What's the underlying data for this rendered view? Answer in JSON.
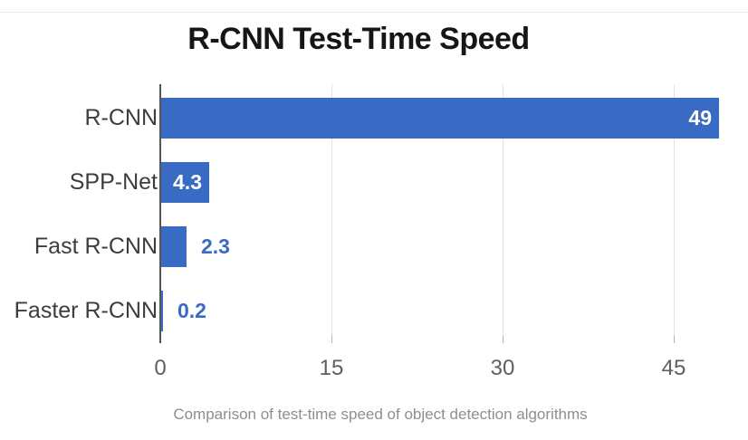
{
  "title_block": {
    "title": "R-CNN Test-Time Speed"
  },
  "chart_data": {
    "type": "bar",
    "orientation": "horizontal",
    "title": "R-CNN Test-Time Speed",
    "categories": [
      "R-CNN",
      "SPP-Net",
      "Fast R-CNN",
      "Faster R-CNN"
    ],
    "values": [
      49,
      4.3,
      2.3,
      0.2
    ],
    "value_labels": [
      "49",
      "4.3",
      "2.3",
      "0.2"
    ],
    "value_label_placement": [
      "inside",
      "inside",
      "outside",
      "outside"
    ],
    "x_ticks": [
      "0",
      "15",
      "30",
      "45"
    ],
    "x_tick_values": [
      0,
      15,
      30,
      45
    ],
    "xlim": [
      0,
      50
    ],
    "grid": true,
    "legend": "none",
    "colors": {
      "bar": "#3a6bc4",
      "value_label_inside": "#ffffff",
      "value_label_outside": "#3a6bc4",
      "axis_line": "#555555",
      "gridline": "#e2e2e2",
      "tick_mark": "#b4b4b4",
      "tick_label": "#5e5e5e",
      "category_label": "#3d3d3d",
      "title": "#161616"
    }
  },
  "caption": {
    "text": "Comparison of test-time speed of object detection algorithms",
    "color": "#8e8e8e"
  }
}
